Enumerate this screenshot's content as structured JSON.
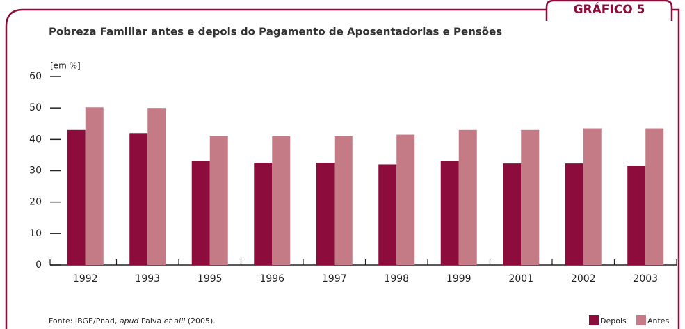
{
  "badge": "GRÁFICO 5",
  "chart_data": {
    "type": "bar",
    "title": "Pobreza Familiar antes e depois do Pagamento de Aposentadorias e Pensões",
    "y_unit": "[em %]",
    "categories": [
      "1992",
      "1993",
      "1995",
      "1996",
      "1997",
      "1998",
      "1999",
      "2001",
      "2002",
      "2003"
    ],
    "series": [
      {
        "name": "Depois",
        "color": "#8c0d3b",
        "values": [
          43,
          42,
          33,
          32.5,
          32.5,
          32,
          33,
          32.3,
          32.3,
          31.6
        ]
      },
      {
        "name": "Antes",
        "color": "#c47b86",
        "values": [
          50.2,
          50,
          41,
          41,
          41,
          41.5,
          43,
          43,
          43.5,
          43.5
        ]
      }
    ],
    "ylim": [
      0,
      60
    ],
    "yticks": [
      0,
      10,
      20,
      30,
      40,
      50,
      60
    ],
    "source": [
      "Fonte: IBGE/Pnad, ",
      "apud",
      " Paiva ",
      "et alii",
      " (2005)."
    ]
  }
}
